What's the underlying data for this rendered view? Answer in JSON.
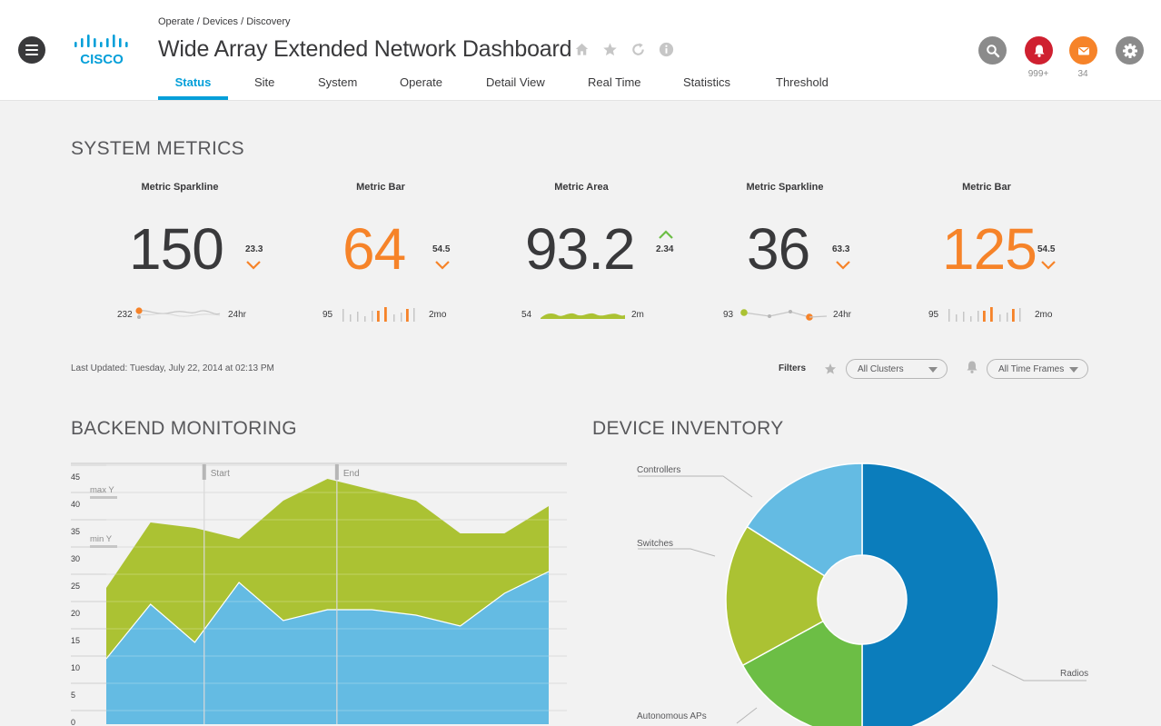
{
  "header": {
    "breadcrumb": "Operate / Devices / Discovery",
    "title": "Wide Array Extended Network Dashboard",
    "logo_text": "CISCO",
    "title_icons": [
      "home-icon",
      "star-icon",
      "refresh-icon",
      "info-icon"
    ],
    "tabs": [
      {
        "label": "Status",
        "active": true
      },
      {
        "label": "Site"
      },
      {
        "label": "System"
      },
      {
        "label": "Operate"
      },
      {
        "label": "Detail View"
      },
      {
        "label": "Real Time"
      },
      {
        "label": "Statistics"
      },
      {
        "label": "Threshold"
      }
    ],
    "alerts_count": "999+",
    "messages_count": "34",
    "colors": {
      "accent": "#049fd9",
      "alert": "#cf2030",
      "message": "#f68329",
      "neutral": "#8b8b8b"
    }
  },
  "system_metrics": {
    "title": "SYSTEM METRICS",
    "metrics": [
      {
        "label": "Metric Sparkline",
        "value": "150",
        "delta": "23.3",
        "direction": "down",
        "color": "#39393b",
        "spark_left": "232",
        "spark_right": "24hr"
      },
      {
        "label": "Metric Bar",
        "value": "64",
        "delta": "54.5",
        "direction": "down",
        "color": "#f68329",
        "spark_left": "95",
        "spark_right": "2mo"
      },
      {
        "label": "Metric Area",
        "value": "93.2",
        "delta": "2.34",
        "direction": "up",
        "color": "#39393b",
        "spark_left": "54",
        "spark_right": "2m"
      },
      {
        "label": "Metric Sparkline",
        "value": "36",
        "delta": "63.3",
        "direction": "down",
        "color": "#39393b",
        "spark_left": "93",
        "spark_right": "24hr"
      },
      {
        "label": "Metric Bar",
        "value": "125",
        "delta": "54.5",
        "direction": "down",
        "color": "#f68329",
        "spark_left": "95",
        "spark_right": "2mo"
      }
    ],
    "last_updated": "Last Updated: Tuesday, July 22, 2014 at 02:13 PM",
    "filters_label": "Filters",
    "cluster_filter": "All Clusters",
    "timeframe_filter": "All Time Frames"
  },
  "backend_monitoring": {
    "title": "BACKEND MONITORING",
    "chart_data": {
      "type": "area",
      "stacked": true,
      "x": [
        0,
        1,
        2,
        3,
        4,
        5,
        6,
        7,
        8,
        9,
        10
      ],
      "series": [
        {
          "values": [
            12,
            22,
            15,
            26,
            19,
            21,
            21,
            20,
            18,
            24,
            28
          ],
          "color": "#64bbe3"
        },
        {
          "values": [
            13,
            15,
            21,
            8,
            22,
            24,
            22,
            21,
            17,
            11,
            12
          ],
          "color": "#abc233"
        }
      ],
      "yticks": [
        0,
        5,
        10,
        15,
        20,
        25,
        30,
        35,
        40,
        45
      ],
      "ylim": [
        0,
        47
      ],
      "reference_lines": [
        {
          "label": "max Y",
          "value": 40
        },
        {
          "label": "min Y",
          "value": 31
        }
      ],
      "markers": [
        {
          "label": "Start",
          "x": 2.5
        },
        {
          "label": "End",
          "x": 5.5
        }
      ],
      "grid": true
    }
  },
  "device_inventory": {
    "title": "DEVICE INVENTORY",
    "chart_data": {
      "type": "pie",
      "donut": true,
      "slices": [
        {
          "label": "Radios",
          "value": 50,
          "color": "#0b7dbc"
        },
        {
          "label": "Autonomous APs",
          "value": 17,
          "color": "#6cbe45"
        },
        {
          "label": "Switches",
          "value": 17,
          "color": "#abc233"
        },
        {
          "label": "Controllers",
          "value": 16,
          "color": "#64bbe3"
        }
      ]
    }
  }
}
